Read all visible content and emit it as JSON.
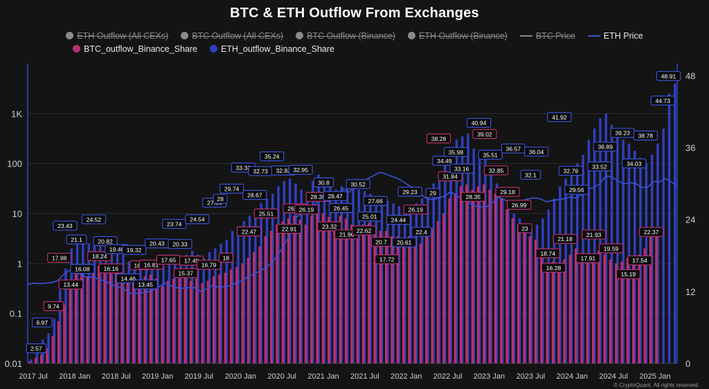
{
  "chart_data": {
    "type": "bar",
    "title": "BTC & ETH Outflow From Exchanges",
    "legend": [
      {
        "name": "ETH Outflow (All CEXs)",
        "color": "#8a8a8a",
        "marker": "dot",
        "hidden": true
      },
      {
        "name": "BTC Outflow (All CEXs)",
        "color": "#8a8a8a",
        "marker": "dot",
        "hidden": true
      },
      {
        "name": "BTC Outflow (Binance)",
        "color": "#8a8a8a",
        "marker": "dot",
        "hidden": true
      },
      {
        "name": "ETH Outflow (Binance)",
        "color": "#8a8a8a",
        "marker": "dot",
        "hidden": true
      },
      {
        "name": "BTC Price",
        "color": "#8a8a8a",
        "marker": "line",
        "hidden": true
      },
      {
        "name": "ETH Price",
        "color": "#3a52d6",
        "marker": "line",
        "hidden": false
      },
      {
        "name": "BTC_outflow_Binance_Share",
        "color": "#b8306f",
        "marker": "dot",
        "hidden": false
      },
      {
        "name": "ETH_outflow_Binance_Share",
        "color": "#2f3fbf",
        "marker": "dot",
        "hidden": false
      }
    ],
    "x_ticks": [
      "2017 Jul",
      "2018 Jan",
      "2018 Jul",
      "2019 Jan",
      "2019 Jul",
      "2020 Jan",
      "2020 Jul",
      "2021 Jan",
      "2021 Jul",
      "2022 Jan",
      "2022 Jul",
      "2023 Jan",
      "2023 Jul",
      "2024 Jan",
      "2024 Jul",
      "2025 Jan"
    ],
    "y_left": {
      "scale": "log",
      "min": 0.01,
      "max": 10000,
      "ticks": [
        {
          "v": 0.01,
          "l": "0.01"
        },
        {
          "v": 0.1,
          "l": "0.1"
        },
        {
          "v": 1,
          "l": "1"
        },
        {
          "v": 10,
          "l": "10"
        },
        {
          "v": 100,
          "l": "100"
        },
        {
          "v": 1000,
          "l": "1K"
        }
      ]
    },
    "y_right": {
      "scale": "linear",
      "min": 0,
      "max": 50,
      "ticks": [
        0,
        12,
        24,
        36,
        48
      ]
    },
    "eth_price": [
      1.6,
      1.7,
      1.65,
      1.7,
      1.75,
      1.9,
      2.5,
      3.0,
      2.8,
      2.5,
      2.2,
      2.3,
      2.0,
      1.9,
      1.6,
      1.4,
      1.3,
      1.0,
      0.95,
      1.0,
      1.05,
      1.2,
      1.4,
      1.7,
      1.5,
      1.35,
      1.3,
      1.35,
      1.35,
      1.1,
      1.25,
      1.5,
      1.4,
      1.4,
      1.5,
      1.7,
      1.9,
      2.3,
      2.6,
      2.9,
      3.4,
      4.0,
      5.5,
      7.5,
      11,
      19,
      22,
      23,
      28,
      35,
      43,
      42,
      37,
      48,
      43,
      55,
      60,
      65,
      72,
      80,
      77,
      71,
      67,
      60,
      53,
      47,
      40,
      35,
      34,
      36,
      38,
      44,
      38,
      35,
      31,
      28,
      27,
      27,
      31,
      37,
      34,
      31,
      30,
      33,
      35,
      36,
      35,
      32,
      33,
      34,
      35,
      37,
      36,
      40,
      48,
      50,
      56,
      71,
      70,
      62,
      56,
      58,
      57,
      50,
      50,
      60,
      59,
      66,
      60,
      52
    ],
    "btc_share": [
      0.011,
      0.013,
      0.015,
      0.02,
      0.035,
      0.07,
      0.15,
      0.4,
      0.65,
      0.7,
      0.55,
      0.75,
      0.9,
      0.85,
      0.8,
      0.65,
      0.5,
      0.6,
      0.45,
      0.5,
      0.55,
      0.6,
      0.5,
      0.35,
      0.45,
      0.5,
      0.5,
      0.55,
      0.45,
      0.5,
      0.4,
      0.45,
      0.55,
      0.6,
      0.65,
      0.75,
      0.85,
      1.0,
      1.3,
      1.7,
      2.2,
      3.5,
      4.5,
      6.0,
      7.0,
      8.0,
      9.0,
      7.5,
      6.0,
      9.0,
      11,
      10,
      8.5,
      7.0,
      9.0,
      8.0,
      6.0,
      5.5,
      6.0,
      6.5,
      5.5,
      4.5,
      4.5,
      3.5,
      3.5,
      3.0,
      3.5,
      3.0,
      2.5,
      3.5,
      5.0,
      7.0,
      10,
      20,
      25,
      35,
      38,
      30,
      35,
      38,
      30,
      25,
      20,
      12,
      8,
      6,
      4.5,
      3.5,
      3.0,
      1.5,
      1.0,
      1.1,
      1.0,
      1.2,
      1.5,
      2.0,
      1.5,
      1.3,
      1.6,
      1.8,
      1.5,
      1.2,
      1.0,
      1.1,
      1.3,
      1.0,
      1.5,
      2.0,
      3.5,
      4.5
    ],
    "eth_share": [
      0.012,
      0.02,
      0.03,
      0.04,
      0.08,
      0.3,
      0.8,
      2.0,
      3.0,
      3.5,
      2.5,
      3.0,
      3.2,
      3.0,
      2.5,
      2.0,
      1.5,
      1.1,
      1.1,
      1.0,
      1.0,
      1.1,
      1.0,
      0.9,
      1.0,
      1.1,
      1.2,
      1.5,
      1.8,
      1.5,
      1.3,
      1.7,
      2.0,
      2.5,
      3.0,
      4.5,
      5.5,
      7.0,
      9.0,
      12,
      16,
      20,
      25,
      35,
      45,
      50,
      40,
      30,
      25,
      45,
      60,
      50,
      40,
      30,
      35,
      40,
      32,
      30,
      28,
      25,
      22,
      20,
      18,
      16,
      14,
      12,
      14,
      16,
      20,
      30,
      40,
      60,
      100,
      200,
      300,
      350,
      400,
      200,
      150,
      120,
      60,
      40,
      20,
      12,
      10,
      8,
      6,
      5,
      6,
      8,
      12,
      20,
      35,
      50,
      70,
      100,
      150,
      300,
      500,
      800,
      1000,
      600,
      400,
      300,
      250,
      180,
      130,
      100,
      150,
      250,
      500,
      2500,
      4000
    ],
    "data_labels": [
      {
        "x": 0.05,
        "v": "2.57",
        "s": "eth"
      },
      {
        "x": 0.1,
        "v": "6.97",
        "s": "eth"
      },
      {
        "x": 0.15,
        "v": "9.74",
        "s": "btc"
      },
      {
        "x": 0.2,
        "v": "17.98",
        "s": "btc"
      },
      {
        "x": 0.25,
        "v": "23.43",
        "s": "eth"
      },
      {
        "x": 0.3,
        "v": "13.44",
        "s": "btc"
      },
      {
        "x": 0.35,
        "v": "21.1",
        "s": "eth"
      },
      {
        "x": 0.4,
        "v": "16.08",
        "s": "eth"
      },
      {
        "x": 0.45,
        "v": "24.52",
        "s": "eth"
      },
      {
        "x": 0.5,
        "v": "18.24",
        "s": "btc"
      },
      {
        "x": 0.55,
        "v": "20.82",
        "s": "eth"
      },
      {
        "x": 0.6,
        "v": "16.16",
        "s": "btc"
      },
      {
        "x": 0.65,
        "v": "19.46",
        "s": "eth"
      },
      {
        "x": 0.7,
        "v": "14.46",
        "s": "eth"
      },
      {
        "x": 0.75,
        "v": "19.32",
        "s": "eth"
      },
      {
        "x": 0.8,
        "v": "16.7",
        "s": "btc"
      },
      {
        "x": 0.85,
        "v": "13.45",
        "s": "eth"
      },
      {
        "x": 0.9,
        "v": "16.81",
        "s": "btc"
      },
      {
        "x": 0.95,
        "v": "20.43",
        "s": "eth"
      },
      {
        "x": 1.0,
        "v": "17.65",
        "s": "btc"
      },
      {
        "x": 1.05,
        "v": "23.74",
        "s": "eth"
      },
      {
        "x": 1.1,
        "v": "20.33",
        "s": "eth"
      },
      {
        "x": 1.15,
        "v": "15.37",
        "s": "btc"
      },
      {
        "x": 1.2,
        "v": "17.49",
        "s": "btc"
      },
      {
        "x": 1.25,
        "v": "24.54",
        "s": "eth"
      },
      {
        "x": 1.3,
        "v": "16.79",
        "s": "btc"
      },
      {
        "x": 1.35,
        "v": "27.36",
        "s": "eth"
      },
      {
        "x": 1.4,
        "v": "28",
        "s": "eth"
      },
      {
        "x": 1.45,
        "v": "18",
        "s": "btc"
      },
      {
        "x": 1.5,
        "v": "29.74",
        "s": "eth"
      },
      {
        "x": 1.55,
        "v": "33.33",
        "s": "eth"
      },
      {
        "x": 1.6,
        "v": "22.47",
        "s": "btc"
      },
      {
        "x": 1.65,
        "v": "28.67",
        "s": "eth"
      },
      {
        "x": 1.7,
        "v": "32.73",
        "s": "eth"
      },
      {
        "x": 1.75,
        "v": "25.51",
        "s": "btc"
      },
      {
        "x": 1.8,
        "v": "35.24",
        "s": "eth"
      },
      {
        "x": 1.85,
        "v": "32.83",
        "s": "eth"
      },
      {
        "x": 1.9,
        "v": "22.91",
        "s": "btc"
      },
      {
        "x": 1.95,
        "v": "26.39",
        "s": "btc"
      },
      {
        "x": 2.0,
        "v": "32.95",
        "s": "eth"
      },
      {
        "x": 2.05,
        "v": "26.19",
        "s": "btc"
      },
      {
        "x": 2.1,
        "v": "28.35",
        "s": "btc"
      },
      {
        "x": 2.15,
        "v": "30.8",
        "s": "eth"
      },
      {
        "x": 2.2,
        "v": "23.32",
        "s": "btc"
      },
      {
        "x": 2.25,
        "v": "28.47",
        "s": "eth"
      },
      {
        "x": 2.3,
        "v": "26.45",
        "s": "eth"
      },
      {
        "x": 2.35,
        "v": "21.96",
        "s": "btc"
      },
      {
        "x": 2.4,
        "v": "30.52",
        "s": "eth"
      },
      {
        "x": 2.45,
        "v": "22.62",
        "s": "btc"
      },
      {
        "x": 2.5,
        "v": "25.01",
        "s": "eth"
      },
      {
        "x": 2.55,
        "v": "27.66",
        "s": "eth"
      },
      {
        "x": 2.6,
        "v": "20.7",
        "s": "btc"
      },
      {
        "x": 2.65,
        "v": "17.72",
        "s": "btc"
      },
      {
        "x": 2.7,
        "v": "24.44",
        "s": "eth"
      },
      {
        "x": 2.75,
        "v": "20.61",
        "s": "eth"
      },
      {
        "x": 2.8,
        "v": "29.23",
        "s": "eth"
      },
      {
        "x": 2.85,
        "v": "26.19",
        "s": "btc"
      },
      {
        "x": 2.9,
        "v": "22.4",
        "s": "eth"
      },
      {
        "x": 2.95,
        "v": "29",
        "s": "eth"
      },
      {
        "x": 3.0,
        "v": "38.28",
        "s": "btc"
      },
      {
        "x": 3.05,
        "v": "34.49",
        "s": "eth"
      },
      {
        "x": 3.1,
        "v": "31.84",
        "s": "btc"
      },
      {
        "x": 3.15,
        "v": "35.98",
        "s": "eth"
      },
      {
        "x": 3.2,
        "v": "33.16",
        "s": "eth"
      },
      {
        "x": 3.25,
        "v": "28.35",
        "s": "btc"
      },
      {
        "x": 3.3,
        "v": "40.94",
        "s": "eth"
      },
      {
        "x": 3.35,
        "v": "39.02",
        "s": "btc"
      },
      {
        "x": 3.4,
        "v": "35.51",
        "s": "eth"
      },
      {
        "x": 3.45,
        "v": "32.85",
        "s": "btc"
      },
      {
        "x": 3.5,
        "v": "29.18",
        "s": "btc"
      },
      {
        "x": 3.55,
        "v": "36.57",
        "s": "eth"
      },
      {
        "x": 3.6,
        "v": "26.99",
        "s": "btc"
      },
      {
        "x": 3.65,
        "v": "23",
        "s": "btc"
      },
      {
        "x": 3.7,
        "v": "32.1",
        "s": "eth"
      },
      {
        "x": 3.75,
        "v": "36.04",
        "s": "eth"
      },
      {
        "x": 3.8,
        "v": "18.74",
        "s": "btc"
      },
      {
        "x": 3.85,
        "v": "16.28",
        "s": "btc"
      },
      {
        "x": 3.9,
        "v": "41.92",
        "s": "eth"
      },
      {
        "x": 3.95,
        "v": "21.18",
        "s": "btc"
      },
      {
        "x": 4.0,
        "v": "32.79",
        "s": "eth"
      },
      {
        "x": 4.05,
        "v": "29.56",
        "s": "eth"
      },
      {
        "x": 4.1,
        "v": "17.91",
        "s": "btc"
      },
      {
        "x": 4.15,
        "v": "21.93",
        "s": "btc"
      },
      {
        "x": 4.2,
        "v": "33.52",
        "s": "eth"
      },
      {
        "x": 4.25,
        "v": "36.89",
        "s": "eth"
      },
      {
        "x": 4.3,
        "v": "19.59",
        "s": "btc"
      },
      {
        "x": 4.35,
        "v": "39.23",
        "s": "eth"
      },
      {
        "x": 4.4,
        "v": "15.19",
        "s": "btc"
      },
      {
        "x": 4.45,
        "v": "34.03",
        "s": "eth"
      },
      {
        "x": 4.5,
        "v": "17.54",
        "s": "btc"
      },
      {
        "x": 4.55,
        "v": "38.78",
        "s": "eth"
      },
      {
        "x": 4.6,
        "v": "22.37",
        "s": "btc"
      },
      {
        "x": 4.65,
        "v": "44.73",
        "s": "eth"
      },
      {
        "x": 4.7,
        "v": "48.91",
        "s": "eth"
      }
    ]
  },
  "credit": "© CryptoQuant. All rights reserved."
}
